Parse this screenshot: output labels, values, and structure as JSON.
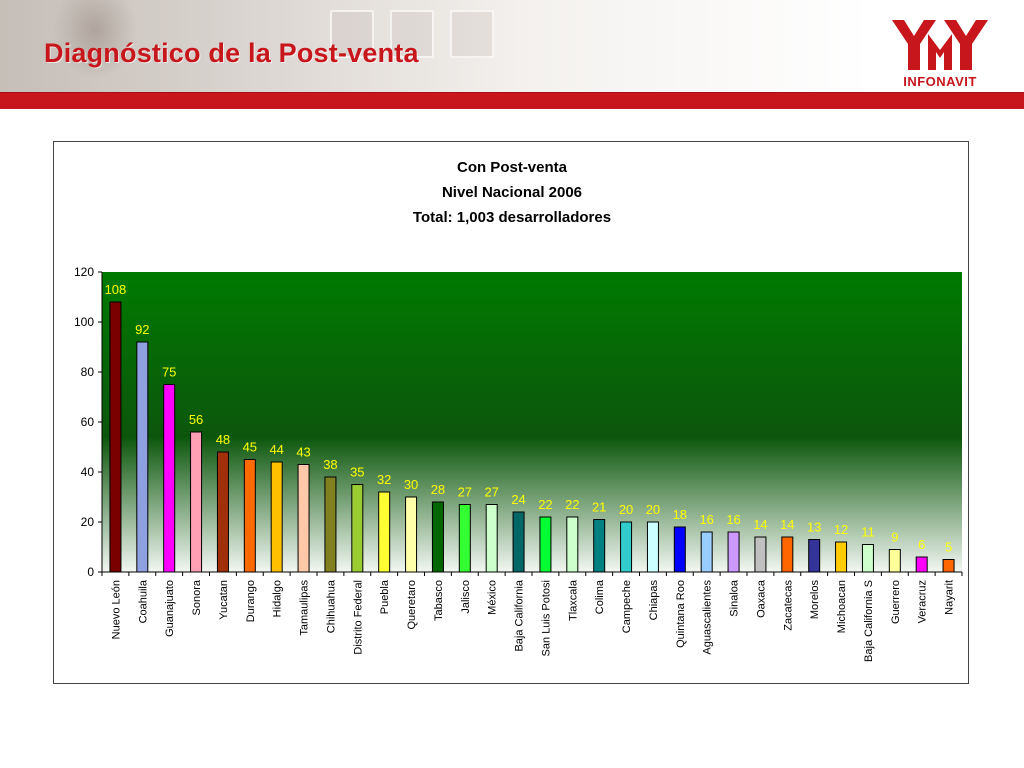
{
  "slide": {
    "title": "Diagnóstico de la Post-venta",
    "logo_text": "INFONAVIT",
    "accent_color": "#c8161d"
  },
  "chart_data": {
    "type": "bar",
    "title_lines": [
      "Con Post-venta",
      "Nivel Nacional 2006",
      "Total: 1,003 desarrolladores"
    ],
    "xlabel": "",
    "ylabel": "",
    "ylim": [
      0,
      120
    ],
    "yticks": [
      0,
      20,
      40,
      60,
      80,
      100,
      120
    ],
    "grid": false,
    "legend": "none",
    "plot_background": "green gradient",
    "data_label_color": "#ffff00",
    "categories": [
      "Nuevo León",
      "Coahuila",
      "Guanajuato",
      "Sonora",
      "Yucatan",
      "Durango",
      "Hidalgo",
      "Tamaulipas",
      "Chihuahua",
      "Distrito Federal",
      "Puebla",
      "Queretaro",
      "Tabasco",
      "Jalisco",
      "México",
      "Baja California",
      "San Luis Potosi",
      "Tlaxcala",
      "Colima",
      "Campeche",
      "Chiapas",
      "Quintana Roo",
      "Aguascalientes",
      "Sinaloa",
      "Oaxaca",
      "Zacatecas",
      "Morelos",
      "Michoacan",
      "Baja California S",
      "Guerrero",
      "Veracruz",
      "Nayarit"
    ],
    "values": [
      108,
      92,
      75,
      56,
      48,
      45,
      44,
      43,
      38,
      35,
      32,
      30,
      28,
      27,
      27,
      24,
      22,
      22,
      21,
      20,
      20,
      18,
      16,
      16,
      14,
      14,
      13,
      12,
      11,
      9,
      6,
      5
    ],
    "colors": [
      "#7a0000",
      "#8fa0e0",
      "#ff00ff",
      "#ffa0b4",
      "#a0300a",
      "#ff6a00",
      "#ffc000",
      "#ffc8a8",
      "#808020",
      "#99cc33",
      "#ffff33",
      "#ffffaa",
      "#006600",
      "#33ff33",
      "#ccffcc",
      "#006666",
      "#00ff33",
      "#ccffcc",
      "#008080",
      "#33cccc",
      "#ccffff",
      "#0000ff",
      "#99ccff",
      "#cc99ff",
      "#c0c0c0",
      "#ff6600",
      "#333399",
      "#ffcc00",
      "#ccffcc",
      "#ffff99",
      "#ff00ff",
      "#ff6600"
    ]
  }
}
